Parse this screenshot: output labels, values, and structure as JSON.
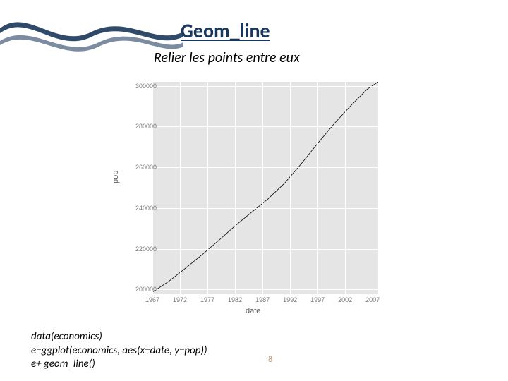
{
  "title": "Geom_line",
  "subtitle": "Relier les points entre eux",
  "ylabel": "pop",
  "xlabel": "date",
  "page_number": "8",
  "footer_lines": [
    "data(economics)",
    "e=ggplot(economics, aes(x=date, y=pop))",
    "e+ geom_line()"
  ],
  "chart": {
    "type": "line",
    "panel_bg": "#e5e5e5",
    "grid_color": "#ffffff",
    "line_color": "#000000",
    "line_width": 0.8,
    "xlim": [
      1967,
      2008
    ],
    "ylim": [
      198000,
      302000
    ],
    "xticks": [
      1967,
      1972,
      1977,
      1982,
      1987,
      1992,
      1997,
      2002,
      2007
    ],
    "yticks": [
      200000,
      220000,
      240000,
      260000,
      280000,
      300000
    ],
    "series": {
      "x": [
        1967,
        1970,
        1973,
        1976,
        1979,
        1982,
        1985,
        1988,
        1991,
        1994,
        1997,
        2000,
        2003,
        2006,
        2008
      ],
      "y": [
        198700,
        204000,
        210400,
        217000,
        224000,
        231200,
        237900,
        244500,
        252200,
        261600,
        271700,
        281400,
        290200,
        298400,
        302000
      ]
    }
  },
  "wave_color": "#254061"
}
